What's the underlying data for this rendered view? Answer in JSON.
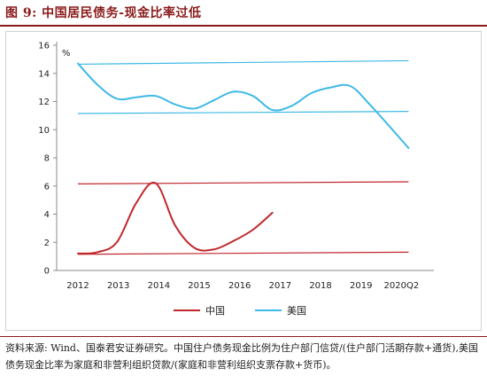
{
  "header": {
    "title": "图 9:  中国居民债务-现金比率过低"
  },
  "chart_data": {
    "type": "line",
    "ylabel": "%",
    "ylim": [
      0,
      16
    ],
    "yticks": [
      0,
      2,
      4,
      6,
      8,
      10,
      12,
      14,
      16
    ],
    "x_ticks": [
      "2012",
      "2013",
      "2014",
      "2015",
      "2016",
      "2017",
      "2018",
      "2019",
      "2020Q2"
    ],
    "x_range": [
      2012,
      2020.5
    ],
    "legend_position": "bottom",
    "grid": false,
    "series": [
      {
        "name": "中国",
        "color": "#c0282d",
        "x": [
          2012,
          2012.5,
          2013,
          2013.5,
          2014,
          2014.5,
          2015,
          2015.5,
          2016,
          2016.5,
          2017
        ],
        "y": [
          1.2,
          1.3,
          2.0,
          4.8,
          6.2,
          3.2,
          1.6,
          1.5,
          2.1,
          2.9,
          4.1
        ]
      },
      {
        "name": "美国",
        "color": "#3fb9e6",
        "x": [
          2012,
          2012.5,
          2013,
          2013.5,
          2014,
          2014.5,
          2015,
          2015.5,
          2016,
          2016.5,
          2017,
          2017.5,
          2018,
          2018.5,
          2019,
          2019.5,
          2020.5
        ],
        "y": [
          14.7,
          13.2,
          12.2,
          12.3,
          12.4,
          11.8,
          11.5,
          12.1,
          12.7,
          12.4,
          11.4,
          11.7,
          12.6,
          13.0,
          13.1,
          11.8,
          8.7
        ]
      }
    ],
    "reference_lines": [
      {
        "color": "#3fb9e6",
        "x": [
          2012,
          2020.5
        ],
        "y": [
          14.65,
          14.9
        ]
      },
      {
        "color": "#3fb9e6",
        "x": [
          2012,
          2020.5
        ],
        "y": [
          11.15,
          11.3
        ]
      },
      {
        "color": "#c0282d",
        "x": [
          2012,
          2020.5
        ],
        "y": [
          6.15,
          6.3
        ]
      },
      {
        "color": "#c0282d",
        "x": [
          2012,
          2020.5
        ],
        "y": [
          1.15,
          1.3
        ]
      }
    ]
  },
  "footer": {
    "source": "资料来源: Wind、国泰君安证券研究。中国住户债务现金比例为住户部门信贷/(住户部门活期存款+通货),美国债务现金比率为家庭和非营利组织贷款/(家庭和非营利组织支票存款+货币)。"
  }
}
